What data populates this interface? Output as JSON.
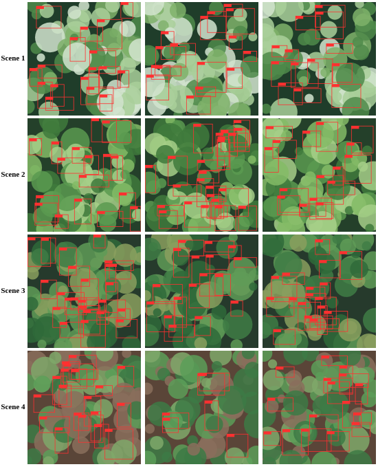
{
  "scenes": [
    {
      "label": "Scene 1"
    },
    {
      "label": "Scene 2"
    },
    {
      "label": "Scene 3"
    },
    {
      "label": "Scene 4"
    }
  ]
}
